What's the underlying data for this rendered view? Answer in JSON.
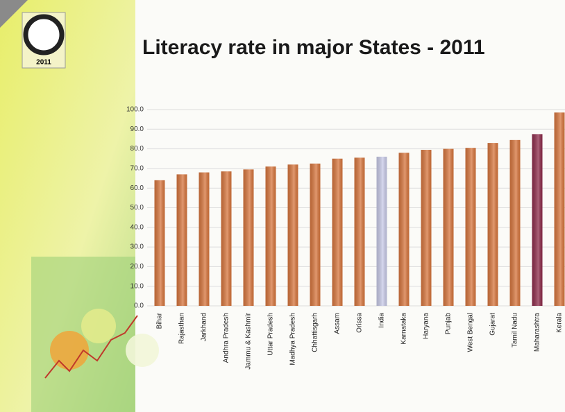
{
  "slide_year": "2011",
  "chart_data": {
    "type": "bar",
    "title": "Literacy rate in major States - 2011",
    "categories": [
      "Bihar",
      "Rajasthan",
      "Jarkhand",
      "Andhra Pradesh",
      "Jammu & Kashmir",
      "Uttar Pradesh",
      "Madhya Pradesh",
      "Chhattisgarh",
      "Assam",
      "Orissa",
      "India",
      "Karnataka",
      "Haryana",
      "Punjab",
      "West Bengal",
      "Gujarat",
      "Tamil Nadu",
      "Maharashtra",
      "Kerala"
    ],
    "values": [
      64,
      67,
      68,
      68.5,
      69.5,
      71,
      72,
      72.5,
      75,
      75.5,
      76,
      78,
      79.5,
      80,
      80.5,
      83,
      84.5,
      87.5,
      98.5
    ],
    "colors": [
      "#d8773f",
      "#d8773f",
      "#d8773f",
      "#d8773f",
      "#d8773f",
      "#d8773f",
      "#d8773f",
      "#d8773f",
      "#d8773f",
      "#d8773f",
      "#c9cbe8",
      "#d8773f",
      "#d8773f",
      "#d8773f",
      "#d8773f",
      "#d8773f",
      "#d8773f",
      "#8e2d4c",
      "#d8773f"
    ],
    "ylim": [
      0,
      100
    ],
    "yticks": [
      {
        "value": 0,
        "label": "0.0"
      },
      {
        "value": 10,
        "label": "10.0"
      },
      {
        "value": 20,
        "label": "20.0"
      },
      {
        "value": 30,
        "label": "30.0"
      },
      {
        "value": 40,
        "label": "40.0"
      },
      {
        "value": 50,
        "label": "50.0"
      },
      {
        "value": 60,
        "label": "60.0"
      },
      {
        "value": 70,
        "label": "70.0"
      },
      {
        "value": 80,
        "label": "80.0"
      },
      {
        "value": 90,
        "label": "90.0"
      },
      {
        "value": 100,
        "label": "100.0"
      }
    ],
    "grid": true
  }
}
